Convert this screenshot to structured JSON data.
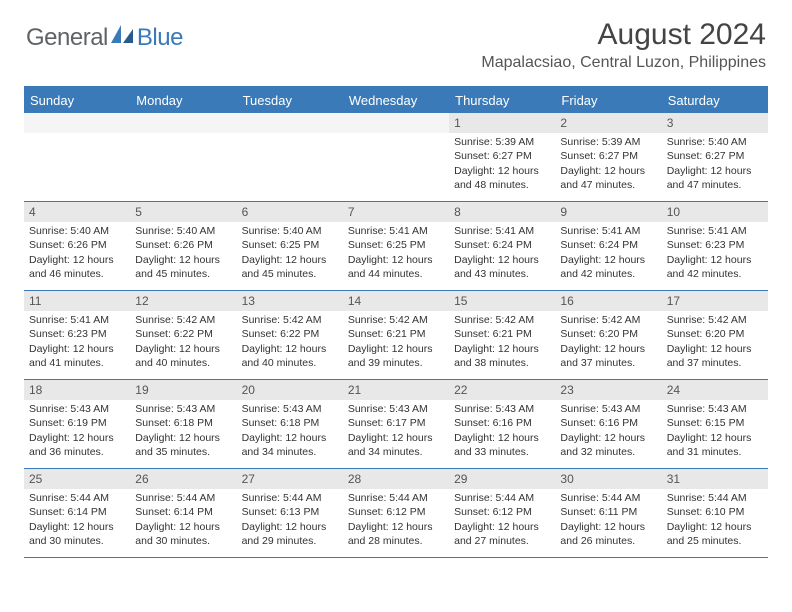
{
  "logo": {
    "text1": "General",
    "text2": "Blue"
  },
  "title": "August 2024",
  "location": "Mapalacsiao, Central Luzon, Philippines",
  "colors": {
    "accent": "#3a7ab8",
    "headerText": "#ffffff",
    "dayNumBg": "#e8e8e8",
    "bodyText": "#333333",
    "titleText": "#444444"
  },
  "weekdays": [
    "Sunday",
    "Monday",
    "Tuesday",
    "Wednesday",
    "Thursday",
    "Friday",
    "Saturday"
  ],
  "weeks": [
    [
      null,
      null,
      null,
      null,
      {
        "n": "1",
        "sr": "5:39 AM",
        "ss": "6:27 PM",
        "dl": "12 hours and 48 minutes."
      },
      {
        "n": "2",
        "sr": "5:39 AM",
        "ss": "6:27 PM",
        "dl": "12 hours and 47 minutes."
      },
      {
        "n": "3",
        "sr": "5:40 AM",
        "ss": "6:27 PM",
        "dl": "12 hours and 47 minutes."
      }
    ],
    [
      {
        "n": "4",
        "sr": "5:40 AM",
        "ss": "6:26 PM",
        "dl": "12 hours and 46 minutes."
      },
      {
        "n": "5",
        "sr": "5:40 AM",
        "ss": "6:26 PM",
        "dl": "12 hours and 45 minutes."
      },
      {
        "n": "6",
        "sr": "5:40 AM",
        "ss": "6:25 PM",
        "dl": "12 hours and 45 minutes."
      },
      {
        "n": "7",
        "sr": "5:41 AM",
        "ss": "6:25 PM",
        "dl": "12 hours and 44 minutes."
      },
      {
        "n": "8",
        "sr": "5:41 AM",
        "ss": "6:24 PM",
        "dl": "12 hours and 43 minutes."
      },
      {
        "n": "9",
        "sr": "5:41 AM",
        "ss": "6:24 PM",
        "dl": "12 hours and 42 minutes."
      },
      {
        "n": "10",
        "sr": "5:41 AM",
        "ss": "6:23 PM",
        "dl": "12 hours and 42 minutes."
      }
    ],
    [
      {
        "n": "11",
        "sr": "5:41 AM",
        "ss": "6:23 PM",
        "dl": "12 hours and 41 minutes."
      },
      {
        "n": "12",
        "sr": "5:42 AM",
        "ss": "6:22 PM",
        "dl": "12 hours and 40 minutes."
      },
      {
        "n": "13",
        "sr": "5:42 AM",
        "ss": "6:22 PM",
        "dl": "12 hours and 40 minutes."
      },
      {
        "n": "14",
        "sr": "5:42 AM",
        "ss": "6:21 PM",
        "dl": "12 hours and 39 minutes."
      },
      {
        "n": "15",
        "sr": "5:42 AM",
        "ss": "6:21 PM",
        "dl": "12 hours and 38 minutes."
      },
      {
        "n": "16",
        "sr": "5:42 AM",
        "ss": "6:20 PM",
        "dl": "12 hours and 37 minutes."
      },
      {
        "n": "17",
        "sr": "5:42 AM",
        "ss": "6:20 PM",
        "dl": "12 hours and 37 minutes."
      }
    ],
    [
      {
        "n": "18",
        "sr": "5:43 AM",
        "ss": "6:19 PM",
        "dl": "12 hours and 36 minutes."
      },
      {
        "n": "19",
        "sr": "5:43 AM",
        "ss": "6:18 PM",
        "dl": "12 hours and 35 minutes."
      },
      {
        "n": "20",
        "sr": "5:43 AM",
        "ss": "6:18 PM",
        "dl": "12 hours and 34 minutes."
      },
      {
        "n": "21",
        "sr": "5:43 AM",
        "ss": "6:17 PM",
        "dl": "12 hours and 34 minutes."
      },
      {
        "n": "22",
        "sr": "5:43 AM",
        "ss": "6:16 PM",
        "dl": "12 hours and 33 minutes."
      },
      {
        "n": "23",
        "sr": "5:43 AM",
        "ss": "6:16 PM",
        "dl": "12 hours and 32 minutes."
      },
      {
        "n": "24",
        "sr": "5:43 AM",
        "ss": "6:15 PM",
        "dl": "12 hours and 31 minutes."
      }
    ],
    [
      {
        "n": "25",
        "sr": "5:44 AM",
        "ss": "6:14 PM",
        "dl": "12 hours and 30 minutes."
      },
      {
        "n": "26",
        "sr": "5:44 AM",
        "ss": "6:14 PM",
        "dl": "12 hours and 30 minutes."
      },
      {
        "n": "27",
        "sr": "5:44 AM",
        "ss": "6:13 PM",
        "dl": "12 hours and 29 minutes."
      },
      {
        "n": "28",
        "sr": "5:44 AM",
        "ss": "6:12 PM",
        "dl": "12 hours and 28 minutes."
      },
      {
        "n": "29",
        "sr": "5:44 AM",
        "ss": "6:12 PM",
        "dl": "12 hours and 27 minutes."
      },
      {
        "n": "30",
        "sr": "5:44 AM",
        "ss": "6:11 PM",
        "dl": "12 hours and 26 minutes."
      },
      {
        "n": "31",
        "sr": "5:44 AM",
        "ss": "6:10 PM",
        "dl": "12 hours and 25 minutes."
      }
    ]
  ],
  "labels": {
    "sunrise": "Sunrise:",
    "sunset": "Sunset:",
    "daylight": "Daylight:"
  }
}
